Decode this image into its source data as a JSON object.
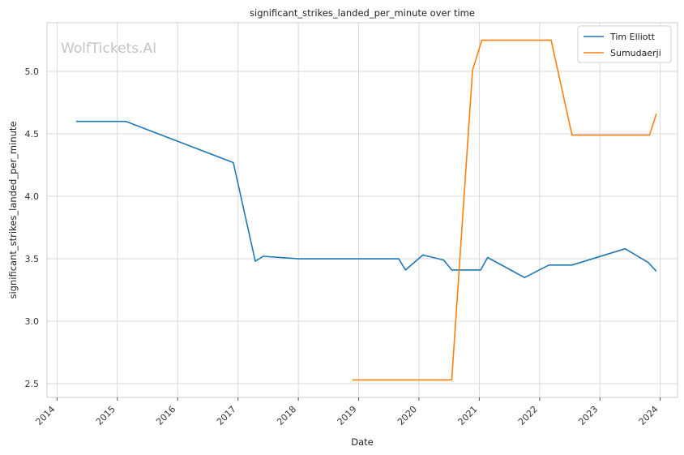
{
  "chart_data": {
    "type": "line",
    "title": "significant_strikes_landed_per_minute over time",
    "xlabel": "Date",
    "ylabel": "significant_strikes_landed_per_minute",
    "watermark": "WolfTickets.AI",
    "x_ticks": [
      "2014",
      "2015",
      "2016",
      "2017",
      "2018",
      "2019",
      "2020",
      "2021",
      "2022",
      "2023",
      "2024"
    ],
    "y_ticks": [
      "2.5",
      "3.0",
      "3.5",
      "4.0",
      "4.5",
      "5.0"
    ],
    "xlim": [
      "2013-11-01",
      "2024-04-15"
    ],
    "ylim": [
      2.39,
      5.39
    ],
    "grid": true,
    "legend_position": "top-right",
    "series": [
      {
        "name": "Tim Elliott",
        "color": "#1f77b4",
        "points": [
          [
            "2014-04-26",
            4.6
          ],
          [
            "2015-02-22",
            4.6
          ],
          [
            "2016-12-03",
            4.27
          ],
          [
            "2017-04-15",
            3.48
          ],
          [
            "2017-06-03",
            3.52
          ],
          [
            "2018-01-01",
            3.5
          ],
          [
            "2019-09-01",
            3.5
          ],
          [
            "2019-10-12",
            3.41
          ],
          [
            "2020-01-25",
            3.53
          ],
          [
            "2020-05-30",
            3.49
          ],
          [
            "2020-07-18",
            3.41
          ],
          [
            "2021-01-09",
            3.41
          ],
          [
            "2021-02-20",
            3.51
          ],
          [
            "2021-10-02",
            3.35
          ],
          [
            "2022-02-26",
            3.45
          ],
          [
            "2022-07-16",
            3.45
          ],
          [
            "2023-06-03",
            3.58
          ],
          [
            "2023-10-21",
            3.47
          ],
          [
            "2023-12-09",
            3.4
          ]
        ]
      },
      {
        "name": "Sumudaerji",
        "color": "#ff7f0e",
        "points": [
          [
            "2018-11-24",
            2.53
          ],
          [
            "2020-07-18",
            2.53
          ],
          [
            "2020-11-21",
            5.01
          ],
          [
            "2021-01-16",
            5.25
          ],
          [
            "2022-03-12",
            5.25
          ],
          [
            "2022-07-16",
            4.49
          ],
          [
            "2023-10-28",
            4.49
          ],
          [
            "2023-12-09",
            4.66
          ]
        ]
      }
    ]
  }
}
